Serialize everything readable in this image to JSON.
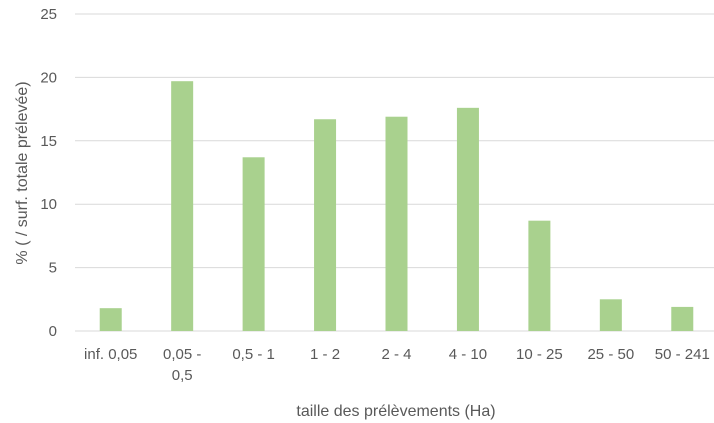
{
  "chart_data": {
    "type": "bar",
    "title": "",
    "xlabel": "taille des prélèvements (Ha)",
    "ylabel": "% ( / surf. totale prélevée)",
    "ylim": [
      0,
      25
    ],
    "yticks": [
      0,
      5,
      10,
      15,
      20,
      25
    ],
    "grid": true,
    "legend": "none",
    "bar_color": "#a9d18e",
    "categories": [
      "inf. 0,05",
      "0,05 -\n0,5",
      "0,5 - 1",
      "1 - 2",
      "2 - 4",
      "4 - 10",
      "10 - 25",
      "25 - 50",
      "50 - 241"
    ],
    "values": [
      1.8,
      19.7,
      13.7,
      16.7,
      16.9,
      17.6,
      8.7,
      2.5,
      1.9
    ]
  }
}
